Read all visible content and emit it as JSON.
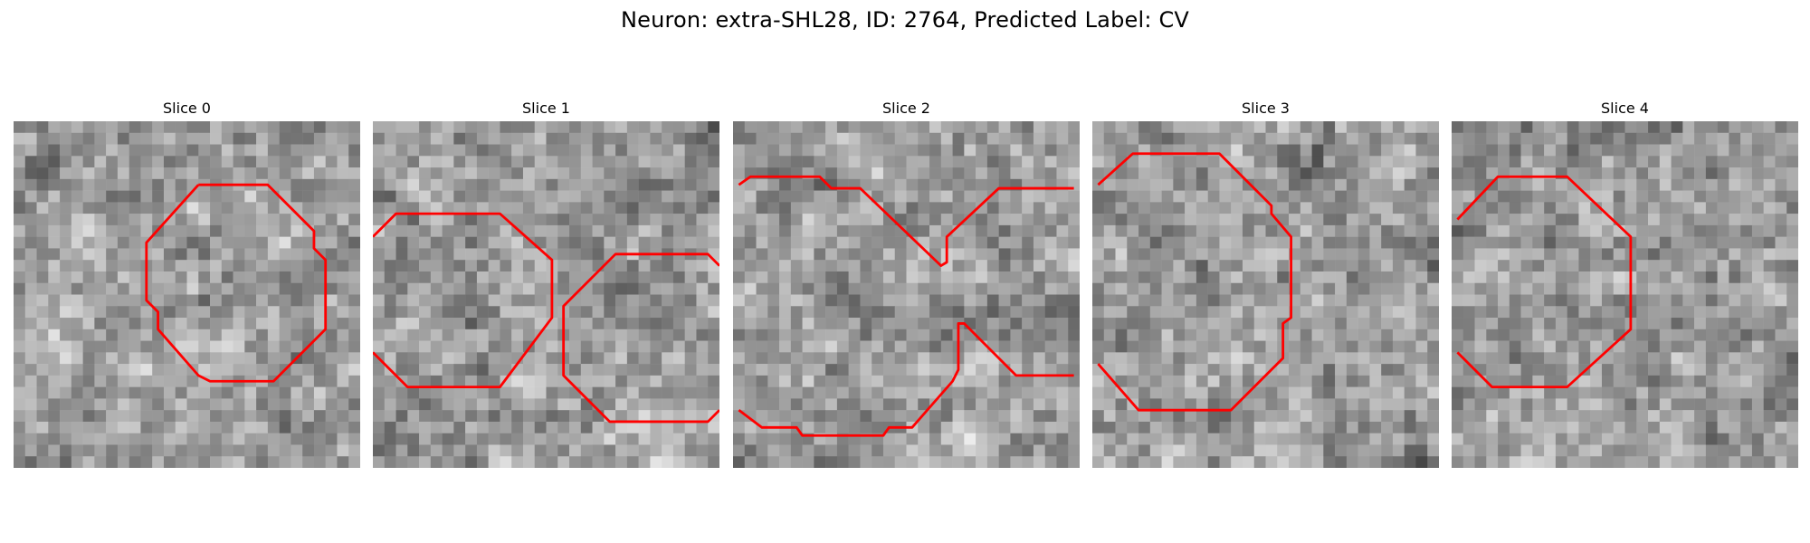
{
  "figure": {
    "title": "Neuron: extra-SHL28, ID: 2764, Predicted Label: CV"
  },
  "panels": [
    {
      "title": "Slice 0",
      "seed": 11
    },
    {
      "title": "Slice 1",
      "seed": 23
    },
    {
      "title": "Slice 2",
      "seed": 37
    },
    {
      "title": "Slice 3",
      "seed": 41
    },
    {
      "title": "Slice 4",
      "seed": 53
    }
  ],
  "colors": {
    "contour": "#ff0000"
  }
}
